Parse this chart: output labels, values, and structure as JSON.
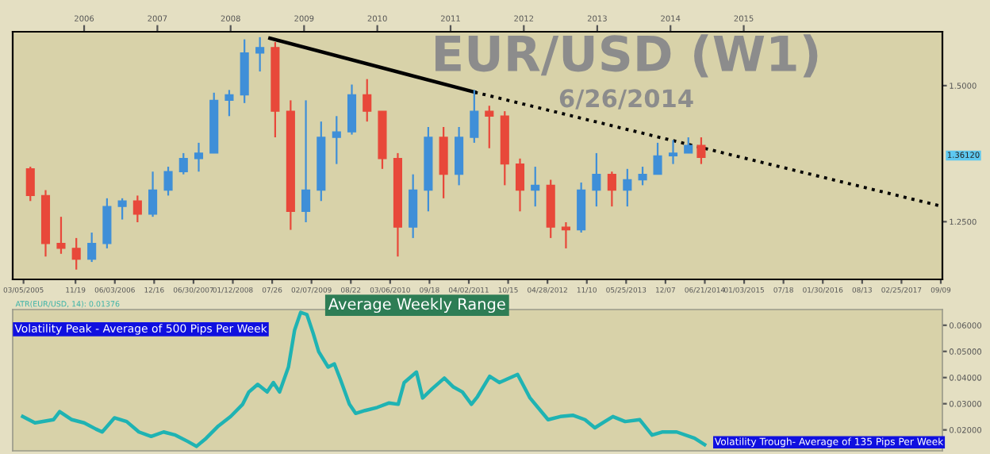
{
  "chart_data": [
    {
      "type": "candlestick",
      "title": "EUR/USD (W1)",
      "subtitle": "6/26/2014",
      "x": [
        "2005-04-08",
        "2005-06-23",
        "2005-09-08",
        "2005-11-23",
        "2006-02-08",
        "2006-04-25",
        "2006-07-10",
        "2006-09-24",
        "2006-12-09",
        "2007-02-24",
        "2007-05-11",
        "2007-07-26",
        "2007-10-10",
        "2007-12-25",
        "2008-03-10",
        "2008-05-26",
        "2008-08-10",
        "2008-10-26",
        "2009-01-10",
        "2009-03-27",
        "2009-06-12",
        "2009-08-27",
        "2009-11-11",
        "2010-01-26",
        "2010-04-13",
        "2010-06-28",
        "2010-09-12",
        "2010-11-27",
        "2011-02-12",
        "2011-04-29",
        "2011-07-13",
        "2011-09-28",
        "2011-12-13",
        "2012-02-27",
        "2012-05-14",
        "2012-07-29",
        "2012-10-13",
        "2012-12-28",
        "2013-03-15",
        "2013-05-31",
        "2013-08-15",
        "2013-10-29",
        "2014-01-14",
        "2014-03-31",
        "2014-06-03"
      ],
      "ohlc": [
        [
          1.347,
          1.351,
          1.288,
          1.298
        ],
        [
          1.298,
          1.308,
          1.186,
          1.21
        ],
        [
          1.21,
          1.259,
          1.191,
          1.201
        ],
        [
          1.201,
          1.22,
          1.162,
          1.181
        ],
        [
          1.181,
          1.23,
          1.176,
          1.21
        ],
        [
          1.21,
          1.293,
          1.201,
          1.278
        ],
        [
          1.278,
          1.293,
          1.254,
          1.288
        ],
        [
          1.288,
          1.298,
          1.249,
          1.264
        ],
        [
          1.264,
          1.342,
          1.259,
          1.308
        ],
        [
          1.308,
          1.351,
          1.298,
          1.342
        ],
        [
          1.342,
          1.376,
          1.337,
          1.366
        ],
        [
          1.366,
          1.395,
          1.342,
          1.376
        ],
        [
          1.376,
          1.487,
          1.376,
          1.473
        ],
        [
          1.473,
          1.492,
          1.444,
          1.483
        ],
        [
          1.483,
          1.585,
          1.468,
          1.56
        ],
        [
          1.56,
          1.589,
          1.526,
          1.57
        ],
        [
          1.57,
          1.58,
          1.405,
          1.453
        ],
        [
          1.453,
          1.473,
          1.235,
          1.269
        ],
        [
          1.269,
          1.473,
          1.249,
          1.308
        ],
        [
          1.308,
          1.434,
          1.288,
          1.405
        ],
        [
          1.405,
          1.444,
          1.356,
          1.415
        ],
        [
          1.415,
          1.502,
          1.41,
          1.483
        ],
        [
          1.483,
          1.512,
          1.434,
          1.453
        ],
        [
          1.453,
          1.453,
          1.347,
          1.366
        ],
        [
          1.366,
          1.376,
          1.186,
          1.24
        ],
        [
          1.24,
          1.337,
          1.22,
          1.308
        ],
        [
          1.308,
          1.424,
          1.269,
          1.405
        ],
        [
          1.405,
          1.424,
          1.293,
          1.337
        ],
        [
          1.337,
          1.424,
          1.317,
          1.405
        ],
        [
          1.405,
          1.492,
          1.395,
          1.453
        ],
        [
          1.453,
          1.463,
          1.385,
          1.444
        ],
        [
          1.444,
          1.453,
          1.317,
          1.356
        ],
        [
          1.356,
          1.366,
          1.269,
          1.308
        ],
        [
          1.308,
          1.351,
          1.278,
          1.317
        ],
        [
          1.317,
          1.327,
          1.22,
          1.24
        ],
        [
          1.24,
          1.249,
          1.201,
          1.235
        ],
        [
          1.235,
          1.322,
          1.23,
          1.308
        ],
        [
          1.308,
          1.376,
          1.278,
          1.337
        ],
        [
          1.337,
          1.342,
          1.278,
          1.308
        ],
        [
          1.308,
          1.347,
          1.278,
          1.327
        ],
        [
          1.327,
          1.351,
          1.317,
          1.337
        ],
        [
          1.337,
          1.395,
          1.337,
          1.371
        ],
        [
          1.371,
          1.4,
          1.356,
          1.376
        ],
        [
          1.376,
          1.405,
          1.376,
          1.39
        ],
        [
          1.39,
          1.405,
          1.356,
          1.368
        ]
      ],
      "colors": [
        "#e8483a",
        "#e8483a",
        "#e8483a",
        "#e8483a",
        "#3f8fd8",
        "#3f8fd8",
        "#3f8fd8",
        "#e8483a",
        "#3f8fd8",
        "#3f8fd8",
        "#3f8fd8",
        "#3f8fd8",
        "#3f8fd8",
        "#3f8fd8",
        "#3f8fd8",
        "#3f8fd8",
        "#e8483a",
        "#e8483a",
        "#3f8fd8",
        "#3f8fd8",
        "#3f8fd8",
        "#3f8fd8",
        "#e8483a",
        "#e8483a",
        "#e8483a",
        "#3f8fd8",
        "#3f8fd8",
        "#e8483a",
        "#3f8fd8",
        "#3f8fd8",
        "#e8483a",
        "#e8483a",
        "#e8483a",
        "#3f8fd8",
        "#e8483a",
        "#e8483a",
        "#3f8fd8",
        "#3f8fd8",
        "#e8483a",
        "#3f8fd8",
        "#3f8fd8",
        "#3f8fd8",
        "#3f8fd8",
        "#3f8fd8",
        "#e8483a"
      ],
      "series": [
        {
          "type": "line",
          "x": [
            "2008-07-15",
            "2011-05-01"
          ],
          "values": [
            1.587,
            1.488
          ],
          "color": "#000000",
          "line_style": "solid"
        },
        {
          "type": "line",
          "x": [
            "2011-05-01",
            "2017-09-17"
          ],
          "values": [
            1.488,
            1.278
          ],
          "color": "#000000",
          "line_style": "dotted"
        }
      ],
      "xlim": [
        "2005-01-10",
        "2017-09-17"
      ],
      "xticks": [
        {
          "value": "2005-03-05",
          "label": "03/05/2005"
        },
        {
          "value": "2005-11-19",
          "label": "11/19"
        },
        {
          "value": "2006-06-03",
          "label": "06/03/2006"
        },
        {
          "value": "2006-12-16",
          "label": "12/16"
        },
        {
          "value": "2007-06-30",
          "label": "06/30/2007"
        },
        {
          "value": "2008-01-12",
          "label": "01/12/2008"
        },
        {
          "value": "2008-07-26",
          "label": "07/26"
        },
        {
          "value": "2009-02-07",
          "label": "02/07/2009"
        },
        {
          "value": "2009-08-22",
          "label": "08/22"
        },
        {
          "value": "2010-03-06",
          "label": "03/06/2010"
        },
        {
          "value": "2010-09-18",
          "label": "09/18"
        },
        {
          "value": "2011-04-02",
          "label": "04/02/2011"
        },
        {
          "value": "2011-10-15",
          "label": "10/15"
        },
        {
          "value": "2012-04-28",
          "label": "04/28/2012"
        },
        {
          "value": "2012-11-10",
          "label": "11/10"
        },
        {
          "value": "2013-05-25",
          "label": "05/25/2013"
        },
        {
          "value": "2013-12-07",
          "label": "12/07"
        },
        {
          "value": "2014-06-21",
          "label": "06/21/2014"
        },
        {
          "value": "2015-01-03",
          "label": "01/03/2015"
        },
        {
          "value": "2015-07-18",
          "label": "07/18"
        },
        {
          "value": "2016-01-30",
          "label": "01/30/2016"
        },
        {
          "value": "2016-08-13",
          "label": "08/13"
        },
        {
          "value": "2017-02-25",
          "label": "02/25/2017"
        },
        {
          "value": "2017-09-09",
          "label": "09/09"
        }
      ],
      "x2lim": [
        "2005-01-10",
        "2017-09-17"
      ],
      "x2ticks": [
        {
          "value": "2006-01-01",
          "label": "2006"
        },
        {
          "value": "2007-01-01",
          "label": "2007"
        },
        {
          "value": "2008-01-01",
          "label": "2008"
        },
        {
          "value": "2009-01-01",
          "label": "2009"
        },
        {
          "value": "2010-01-01",
          "label": "2010"
        },
        {
          "value": "2011-01-01",
          "label": "2011"
        },
        {
          "value": "2012-01-01",
          "label": "2012"
        },
        {
          "value": "2013-01-01",
          "label": "2013"
        },
        {
          "value": "2014-01-01",
          "label": "2014"
        },
        {
          "value": "2015-01-01",
          "label": "2015"
        }
      ],
      "ylim": [
        1.144,
        1.599
      ],
      "yticks": [
        {
          "value": 1.25,
          "label": "1.2500"
        },
        {
          "value": 1.5,
          "label": "1.5000"
        }
      ],
      "annotations": [
        "1.36120"
      ],
      "grid": false,
      "legend": false
    },
    {
      "type": "line",
      "title": "Average Weekly Range",
      "series": [
        {
          "color": "#1fb3b3",
          "x": [
            "2005-03-01",
            "2005-05-01",
            "2005-08-01",
            "2005-09-01",
            "2005-11-01",
            "2006-01-01",
            "2006-03-01",
            "2006-04-01",
            "2006-06-01",
            "2006-08-01",
            "2006-10-01",
            "2006-12-01",
            "2007-02-01",
            "2007-04-01",
            "2007-06-01",
            "2007-07-15",
            "2007-09-01",
            "2007-11-01",
            "2008-01-01",
            "2008-03-01",
            "2008-04-01",
            "2008-05-15",
            "2008-07-01",
            "2008-08-01",
            "2008-09-01",
            "2008-10-15",
            "2008-11-15",
            "2008-12-15",
            "2009-01-15",
            "2009-02-15",
            "2009-03-15",
            "2009-05-01",
            "2009-06-01",
            "2009-07-01",
            "2009-08-15",
            "2009-09-15",
            "2009-11-01",
            "2010-01-01",
            "2010-03-01",
            "2010-04-15",
            "2010-05-15",
            "2010-07-15",
            "2010-08-15",
            "2010-10-01",
            "2010-12-01",
            "2011-01-15",
            "2011-03-01",
            "2011-04-15",
            "2011-05-15",
            "2011-07-15",
            "2011-09-01",
            "2011-12-01",
            "2012-02-01",
            "2012-05-01",
            "2012-07-01",
            "2012-09-01",
            "2012-11-01",
            "2012-12-20",
            "2013-03-20",
            "2013-05-20",
            "2013-08-01",
            "2013-10-01",
            "2013-11-20",
            "2014-02-01",
            "2014-05-01",
            "2014-06-20"
          ],
          "values": [
            0.0251,
            0.0227,
            0.0239,
            0.027,
            0.0239,
            0.0227,
            0.0203,
            0.0192,
            0.0246,
            0.0232,
            0.0192,
            0.0175,
            0.0192,
            0.018,
            0.0156,
            0.0137,
            0.0168,
            0.0215,
            0.0251,
            0.0298,
            0.0345,
            0.0374,
            0.0345,
            0.0381,
            0.0345,
            0.044,
            0.0582,
            0.0649,
            0.0641,
            0.057,
            0.0499,
            0.044,
            0.0452,
            0.0393,
            0.0298,
            0.0263,
            0.0274,
            0.0286,
            0.0303,
            0.0298,
            0.0381,
            0.0421,
            0.0322,
            0.0357,
            0.0398,
            0.0364,
            0.0345,
            0.0298,
            0.0327,
            0.0405,
            0.0381,
            0.0412,
            0.0322,
            0.0239,
            0.0251,
            0.0256,
            0.0239,
            0.0208,
            0.0251,
            0.0232,
            0.0239,
            0.018,
            0.0192,
            0.0192,
            0.0168,
            0.0144
          ]
        }
      ],
      "xlim": [
        "2005-01-10",
        "2017-09-17"
      ],
      "ylim": [
        0.012,
        0.066
      ],
      "yticks": [
        {
          "value": 0.02,
          "label": "0.02000"
        },
        {
          "value": 0.03,
          "label": "0.03000"
        },
        {
          "value": 0.04,
          "label": "0.04000"
        },
        {
          "value": 0.05,
          "label": "0.05000"
        },
        {
          "value": 0.06,
          "label": "0.06000"
        }
      ],
      "tick_labels": "y",
      "annotations": [
        "ATR(EUR/USD, 14): 0.01376",
        "Volatility Peak - Average of 500 Pips Per Week",
        "Volatility Trough- Average of 135 Pips Per Week"
      ],
      "grid": false,
      "legend": false
    }
  ]
}
